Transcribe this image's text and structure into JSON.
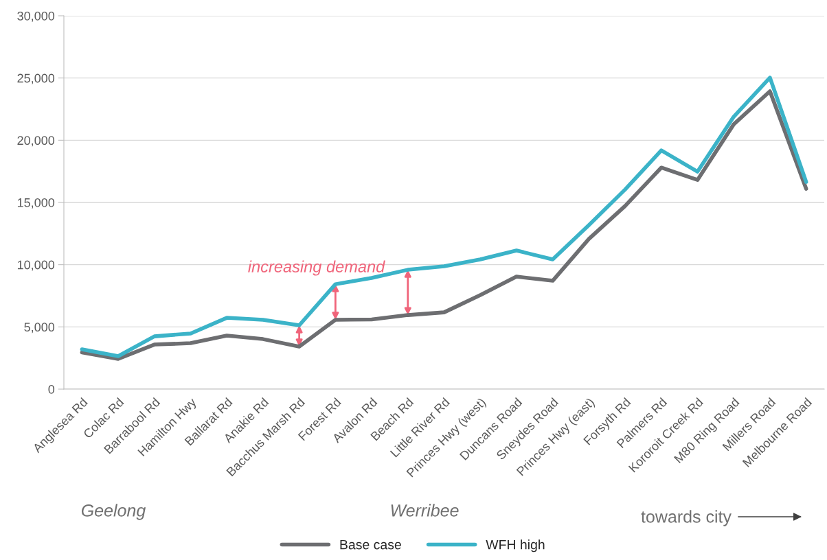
{
  "chart_data": {
    "type": "line",
    "categories": [
      "Anglesea Rd",
      "Colac Rd",
      "Barrabool Rd",
      "Hamilton Hwy",
      "Ballarat Rd",
      "Anakie Rd",
      "Bacchus Marsh Rd",
      "Forest Rd",
      "Avalon Rd",
      "Beach Rd",
      "Little River Rd",
      "Princes Hwy (west)",
      "Duncans Road",
      "Sneydes Road",
      "Princes Hwy (east)",
      "Forsyth Rd",
      "Palmers Rd",
      "Kororoit Creek Rd",
      "M80 Ring Road",
      "Millers Road",
      "Melbourne Road"
    ],
    "series": [
      {
        "name": "Base case",
        "color": "#6d6e71",
        "values": [
          2950,
          2430,
          3580,
          3690,
          4300,
          4020,
          3420,
          5570,
          5600,
          5950,
          6170,
          7550,
          9040,
          8710,
          12070,
          14720,
          17800,
          16810,
          21280,
          23930,
          16100
        ]
      },
      {
        "name": "WFH high",
        "color": "#3bb3c8",
        "values": [
          3200,
          2650,
          4240,
          4470,
          5730,
          5570,
          5130,
          8430,
          8930,
          9590,
          9870,
          10420,
          11140,
          10420,
          13180,
          16040,
          19180,
          17480,
          21890,
          25030,
          16650
        ]
      }
    ],
    "ylim": [
      0,
      30000
    ],
    "yticks": [
      0,
      {
        "value": 5000,
        "label": "5,000"
      },
      {
        "value": 10000,
        "label": "10,000"
      },
      {
        "value": 15000,
        "label": "15,000"
      },
      {
        "value": 20000,
        "label": "20,000"
      },
      {
        "value": 25000,
        "label": "25,000"
      },
      {
        "value": 30000,
        "label": "30,000"
      }
    ],
    "grid": "y",
    "legend": "bottom",
    "marker": "none",
    "line_style": "solid",
    "annotations": [
      {
        "text": "increasing demand",
        "x": "Forest Rd",
        "y": 8430
      },
      "Geelong",
      "Werribee",
      "towards city"
    ]
  }
}
